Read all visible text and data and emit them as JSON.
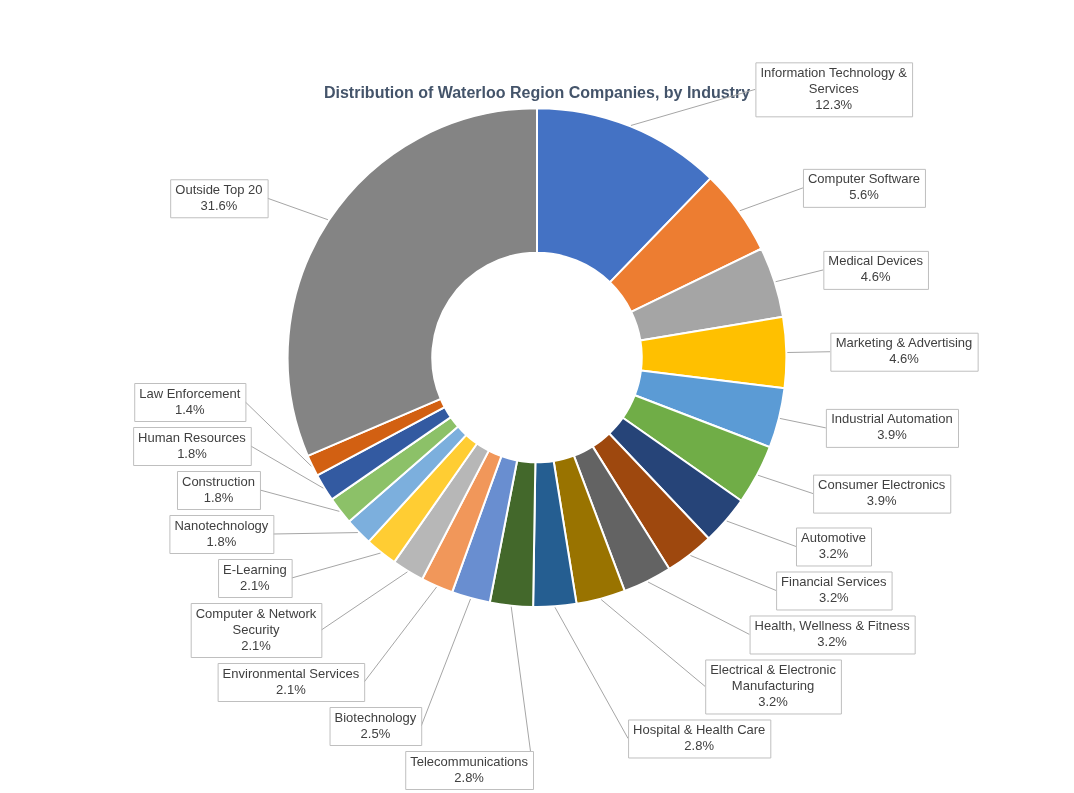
{
  "chart_data": {
    "type": "donut",
    "title": "Distribution of Waterloo Region Companies, by Industry",
    "categories": [
      "Information Technology & Services",
      "Computer Software",
      "Medical Devices",
      "Marketing & Advertising",
      "Industrial Automation",
      "Consumer Electronics",
      "Automotive",
      "Financial Services",
      "Health, Wellness & Fitness",
      "Electrical & Electronic Manufacturing",
      "Hospital & Health Care",
      "Telecommunications",
      "Biotechnology",
      "Environmental Services",
      "Computer & Network Security",
      "E-Learning",
      "Nanotechnology",
      "Construction",
      "Human Resources",
      "Law Enforcement",
      "Outside Top 20"
    ],
    "values": [
      12.3,
      5.6,
      4.6,
      4.6,
      3.9,
      3.9,
      3.2,
      3.2,
      3.2,
      3.2,
      2.8,
      2.8,
      2.5,
      2.1,
      2.1,
      2.1,
      1.8,
      1.8,
      1.8,
      1.4,
      31.6
    ],
    "value_labels": [
      "12.3%",
      "5.6%",
      "4.6%",
      "4.6%",
      "3.9%",
      "3.9%",
      "3.2%",
      "3.2%",
      "3.2%",
      "3.2%",
      "2.8%",
      "2.8%",
      "2.5%",
      "2.1%",
      "2.1%",
      "2.1%",
      "1.8%",
      "1.8%",
      "1.8%",
      "1.4%",
      "31.6%"
    ],
    "colors": [
      "#4472c4",
      "#ed7d31",
      "#a5a5a5",
      "#ffc000",
      "#5b9bd5",
      "#70ad47",
      "#264478",
      "#9e480e",
      "#636363",
      "#997300",
      "#255e91",
      "#43682b",
      "#698ed0",
      "#f1975a",
      "#b7b7b7",
      "#ffcd33",
      "#7cafdd",
      "#8cc168",
      "#335aa1",
      "#d26012",
      "#848484"
    ],
    "legend": false
  }
}
